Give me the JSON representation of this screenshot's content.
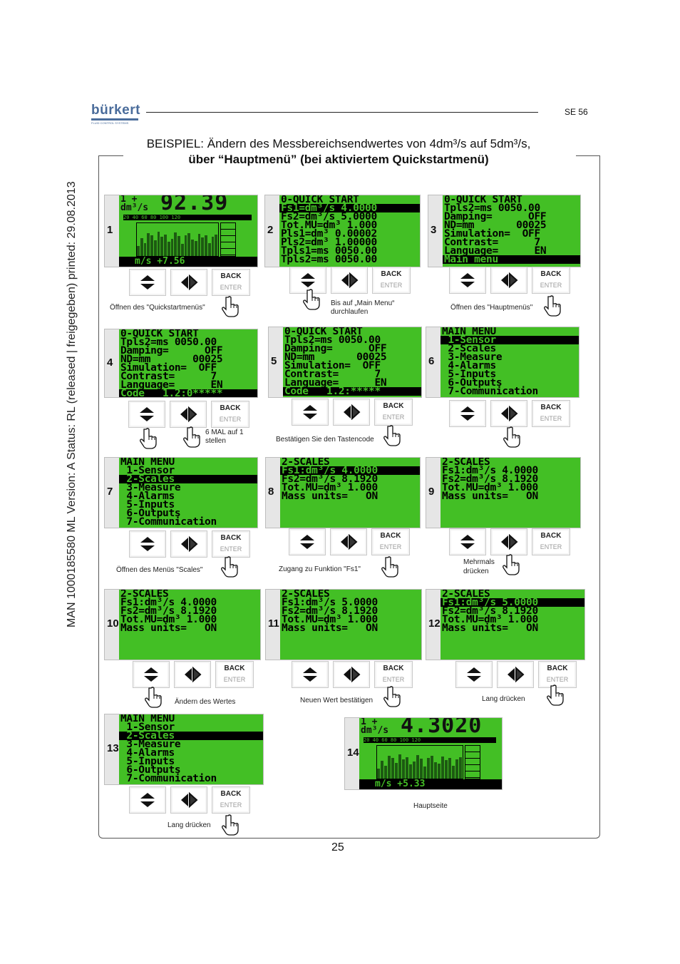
{
  "header": {
    "brand": "bürkert",
    "brand_sub": "FLUID CONTROL SYSTEMS",
    "doc_code": "SE 56"
  },
  "side_text": "MAN  1000185580  ML  Version: A  Status: RL (released | freigegeben)  printed: 29.08.2013",
  "title": {
    "line1": "BEISPIEL: Ändern des Messbereichsendwertes von 4dm³/s auf 5dm³/s,",
    "line2": "über “Hauptmenü” (bei aktiviertem Quickstartmenü)"
  },
  "buttons": {
    "back": "BACK",
    "enter": "ENTER"
  },
  "screens": [
    {
      "num": "1",
      "type": "main",
      "big": "92.39",
      "unit_top": "1 +",
      "unit": "dm³/s",
      "scale": "20 40 60 80 100 120",
      "bottom": "m/s +7.56"
    },
    {
      "num": "2",
      "type": "text",
      "lines": [
        "0-QUICK START",
        "Fs1=dm³/s 4.0000",
        "Fs2=dm³/s 5.0000",
        "Tot.MU=dm³ 1.000",
        "Pls1=dm³ 0.00002",
        "Pls2=dm³ 1.00000",
        "Tpls1=ms 0050.00",
        "Tpls2=ms 0050.00"
      ],
      "inv": [
        1
      ]
    },
    {
      "num": "3",
      "type": "text",
      "lines": [
        "0-QUICK START",
        "Tpls2=ms 0050.00",
        "Damping=      OFF",
        "ND=mm       00025",
        "Simulation=  OFF",
        "Contrast=      7",
        "Language=      EN",
        "Main menu"
      ],
      "inv": [
        7
      ]
    },
    {
      "num": "4",
      "type": "text",
      "lines": [
        "0-QUICK START",
        "Tpls2=ms 0050.00",
        "Damping=      OFF",
        "ND=mm       00025",
        "Simulation=  OFF",
        "Contrast=      7",
        "Language=      EN",
        "Code   1.2:0*****"
      ],
      "inv": [
        7
      ]
    },
    {
      "num": "5",
      "type": "text",
      "lines": [
        "0-QUICK START",
        "Tpls2=ms 0050.00",
        "Damping=      OFF",
        "ND=mm       00025",
        "Simulation=  OFF",
        "Contrast=      7",
        "Language=      EN",
        "Code   1.2:*****"
      ],
      "inv": [
        7
      ]
    },
    {
      "num": "6",
      "type": "text",
      "lines": [
        "MAIN MENU",
        " 1-Sensor",
        " 2-Scales",
        " 3-Measure",
        " 4-Alarms",
        " 5-Inputs",
        " 6-Outputs",
        " 7-Communication"
      ],
      "inv": [
        1
      ]
    },
    {
      "num": "7",
      "type": "text",
      "lines": [
        "MAIN MENU",
        " 1-Sensor",
        " 2-Scales",
        " 3-Measure",
        " 4-Alarms",
        " 5-Inputs",
        " 6-Outputs",
        " 7-Communication"
      ],
      "inv": [
        2
      ]
    },
    {
      "num": "8",
      "type": "text",
      "lines": [
        "2-SCALES",
        "Fs1:dm³/s 4.0000",
        "Fs2=dm³/s 8.1920",
        "Tot.MU=dm³ 1.000",
        "Mass units=   ON"
      ],
      "inv": [
        1
      ]
    },
    {
      "num": "9",
      "type": "text",
      "lines": [
        "2-SCALES",
        "Fs1:dm³/s 4.0000",
        "Fs2=dm³/s 8.1920",
        "Tot.MU=dm³ 1.000",
        "Mass units=   ON"
      ],
      "inv": []
    },
    {
      "num": "10",
      "type": "text",
      "lines": [
        "2-SCALES",
        "Fs1:dm³/s 4.0000",
        "Fs2=dm³/s 8.1920",
        "Tot.MU=dm³ 1.000",
        "Mass units=   ON"
      ],
      "inv": []
    },
    {
      "num": "11",
      "type": "text",
      "lines": [
        "2-SCALES",
        "Fs1:dm³/s 5.0000",
        "Fs2=dm³/s 8.1920",
        "Tot.MU=dm³ 1.000",
        "Mass units=   ON"
      ],
      "inv": []
    },
    {
      "num": "12",
      "type": "text",
      "lines": [
        "2-SCALES",
        "Fs1:dm³/s 5.0000",
        "Fs2=dm³/s 8.1920",
        "Tot.MU=dm³ 1.000",
        "Mass units=   ON"
      ],
      "inv": [
        1
      ]
    },
    {
      "num": "13",
      "type": "text",
      "lines": [
        "MAIN MENU",
        " 1-Sensor",
        " 2-Scales",
        " 3-Measure",
        " 4-Alarms",
        " 5-Inputs",
        " 6-Outputs",
        " 7-Communication"
      ],
      "inv": [
        2
      ]
    },
    {
      "num": "14",
      "type": "main",
      "big": "4.3020",
      "unit_top": "1 +",
      "unit": "dm³/s",
      "scale": "20 40 60 80 100 120",
      "bottom": "m/s +5.33"
    }
  ],
  "captions": {
    "c1": "Öffnen des \"Quickstartmenüs\"",
    "c2a": "Bis auf „Main Menu“",
    "c2b": "durchlaufen",
    "c3": "Öffnen des \"Hauptmenüs\"",
    "c4a": "6 MAL auf 1",
    "c4b": "stellen",
    "c5": "Bestätigen Sie den Tastencode",
    "c7": "Öffnen des Menüs \"Scales\"",
    "c8": "Zugang zu Funktion \"Fs1\"",
    "c9a": "Mehrmals",
    "c9b": "drücken",
    "c10": "Ändern des Wertes",
    "c11": "Neuen Wert bestätigen",
    "c12": "Lang drücken",
    "c13": "Lang drücken",
    "c14": "Hauptseite"
  },
  "page_number": "25"
}
